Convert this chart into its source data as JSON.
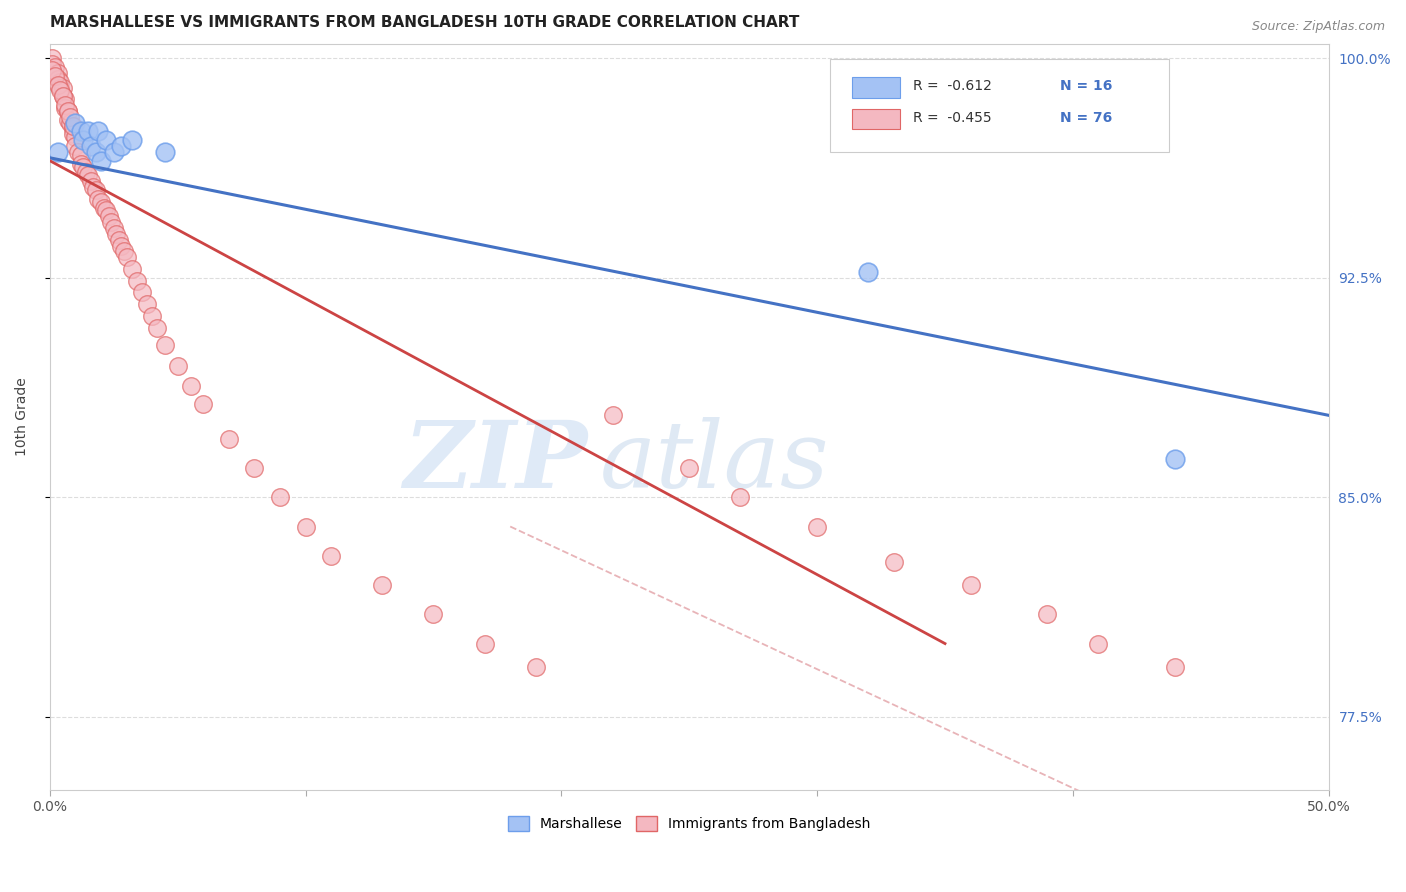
{
  "title": "MARSHALLESE VS IMMIGRANTS FROM BANGLADESH 10TH GRADE CORRELATION CHART",
  "source_text": "Source: ZipAtlas.com",
  "xlabel_blue": "Marshallese",
  "xlabel_pink": "Immigrants from Bangladesh",
  "ylabel": "10th Grade",
  "watermark_zip": "ZIP",
  "watermark_atlas": "atlas",
  "legend_blue_r": "R =  -0.612",
  "legend_blue_n": "N = 16",
  "legend_pink_r": "R =  -0.455",
  "legend_pink_n": "N = 76",
  "xmin": 0.0,
  "xmax": 0.5,
  "ymin": 0.75,
  "ymax": 1.005,
  "yticks": [
    0.775,
    0.85,
    0.925,
    1.0
  ],
  "ytick_labels": [
    "77.5%",
    "85.0%",
    "92.5%",
    "100.0%"
  ],
  "xticks": [
    0.0,
    0.1,
    0.2,
    0.3,
    0.4,
    0.5
  ],
  "xtick_labels": [
    "0.0%",
    "",
    "",
    "",
    "",
    "50.0%"
  ],
  "blue_scatter_x": [
    0.003,
    0.01,
    0.012,
    0.013,
    0.015,
    0.016,
    0.018,
    0.019,
    0.02,
    0.022,
    0.025,
    0.028,
    0.032,
    0.045,
    0.32,
    0.44
  ],
  "blue_scatter_y": [
    0.968,
    0.978,
    0.975,
    0.972,
    0.975,
    0.97,
    0.968,
    0.975,
    0.965,
    0.972,
    0.968,
    0.97,
    0.972,
    0.968,
    0.927,
    0.863
  ],
  "pink_scatter_x": [
    0.001,
    0.001,
    0.002,
    0.003,
    0.003,
    0.004,
    0.004,
    0.005,
    0.005,
    0.006,
    0.006,
    0.007,
    0.007,
    0.008,
    0.009,
    0.009,
    0.01,
    0.01,
    0.011,
    0.012,
    0.012,
    0.013,
    0.014,
    0.015,
    0.016,
    0.017,
    0.018,
    0.019,
    0.02,
    0.021,
    0.022,
    0.023,
    0.024,
    0.025,
    0.026,
    0.027,
    0.028,
    0.029,
    0.03,
    0.032,
    0.034,
    0.036,
    0.038,
    0.04,
    0.042,
    0.045,
    0.05,
    0.055,
    0.06,
    0.07,
    0.08,
    0.09,
    0.1,
    0.11,
    0.13,
    0.15,
    0.17,
    0.19,
    0.22,
    0.25,
    0.27,
    0.3,
    0.33,
    0.36,
    0.39,
    0.41,
    0.44,
    0.001,
    0.002,
    0.003,
    0.004,
    0.005,
    0.006,
    0.007,
    0.008,
    0.009
  ],
  "pink_scatter_y": [
    1.0,
    0.998,
    0.997,
    0.995,
    0.993,
    0.992,
    0.99,
    0.99,
    0.987,
    0.986,
    0.983,
    0.982,
    0.979,
    0.978,
    0.976,
    0.974,
    0.973,
    0.97,
    0.968,
    0.967,
    0.964,
    0.963,
    0.961,
    0.96,
    0.958,
    0.956,
    0.955,
    0.952,
    0.951,
    0.949,
    0.948,
    0.946,
    0.944,
    0.942,
    0.94,
    0.938,
    0.936,
    0.934,
    0.932,
    0.928,
    0.924,
    0.92,
    0.916,
    0.912,
    0.908,
    0.902,
    0.895,
    0.888,
    0.882,
    0.87,
    0.86,
    0.85,
    0.84,
    0.83,
    0.82,
    0.81,
    0.8,
    0.792,
    0.878,
    0.86,
    0.85,
    0.84,
    0.828,
    0.82,
    0.81,
    0.8,
    0.792,
    0.996,
    0.994,
    0.991,
    0.989,
    0.987,
    0.984,
    0.982,
    0.98,
    0.977
  ],
  "blue_line_x": [
    0.0,
    0.5
  ],
  "blue_line_y": [
    0.966,
    0.878
  ],
  "pink_line_x": [
    0.0,
    0.35
  ],
  "pink_line_y": [
    0.965,
    0.8
  ],
  "dashed_line_x": [
    0.18,
    0.5
  ],
  "dashed_line_y": [
    0.84,
    0.71
  ],
  "blue_color": "#a4c2f4",
  "pink_color": "#f4b8c1",
  "blue_edge_color": "#6d9eeb",
  "pink_edge_color": "#e06666",
  "blue_line_color": "#4472c4",
  "pink_line_color": "#cc4444",
  "dashed_color": "#e8b4b8",
  "title_fontsize": 11,
  "tick_color_right": "#4472c4",
  "grid_color": "#dddddd",
  "background_color": "#ffffff"
}
